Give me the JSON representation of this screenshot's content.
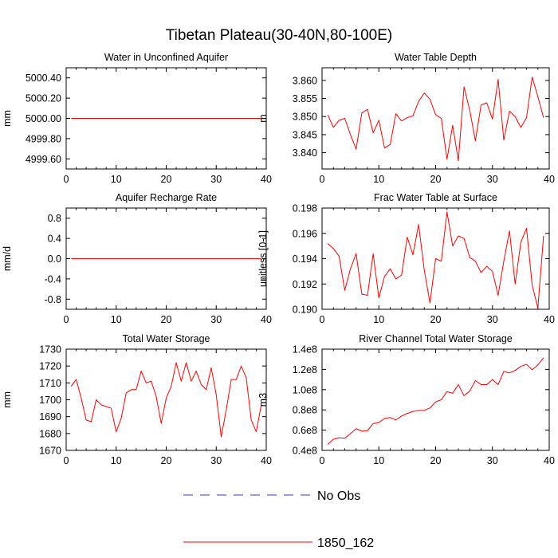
{
  "figure": {
    "title": "Tibetan Plateau(30-40N,80-100E)"
  },
  "legend": {
    "items": [
      {
        "label": "No Obs",
        "color": "#3a3ab0",
        "dash": true
      },
      {
        "label": "1850_162",
        "color": "#ff0000",
        "dash": false
      }
    ]
  },
  "chart_data": [
    {
      "type": "line",
      "title": "Water in Unconfined Aquifer",
      "ylabel": "mm",
      "xlim": [
        0,
        40
      ],
      "ylim": [
        4999.5,
        5000.5
      ],
      "xticks": [
        0,
        10,
        20,
        30,
        40
      ],
      "xtick_labels": [
        "0",
        "10",
        "20",
        "30",
        "40"
      ],
      "yticks": [
        4999.6,
        4999.8,
        5000.0,
        5000.2,
        5000.4
      ],
      "ytick_labels": [
        "4999.60",
        "4999.80",
        "5000.00",
        "5000.20",
        "5000.40"
      ],
      "series": [
        {
          "color": "#ff0000",
          "x": [
            1,
            39
          ],
          "y": [
            5000.0,
            5000.0
          ]
        }
      ]
    },
    {
      "type": "line",
      "title": "Water Table Depth",
      "ylabel": "m",
      "xlim": [
        0,
        40
      ],
      "ylim": [
        3.8355,
        3.8635
      ],
      "xticks": [
        0,
        10,
        20,
        30,
        40
      ],
      "xtick_labels": [
        "0",
        "10",
        "20",
        "30",
        "40"
      ],
      "yticks": [
        3.84,
        3.845,
        3.85,
        3.855,
        3.86
      ],
      "ytick_labels": [
        "3.840",
        "3.845",
        "3.850",
        "3.855",
        "3.860"
      ],
      "series": [
        {
          "color": "#ff0000",
          "x": [
            1,
            2,
            3,
            4,
            5,
            6,
            7,
            8,
            9,
            10,
            11,
            12,
            13,
            14,
            15,
            16,
            17,
            18,
            19,
            20,
            21,
            22,
            23,
            24,
            25,
            26,
            27,
            28,
            29,
            30,
            31,
            32,
            33,
            34,
            35,
            36,
            37,
            38,
            39
          ],
          "y": [
            3.8505,
            3.847,
            3.849,
            3.8495,
            3.845,
            3.841,
            3.851,
            3.852,
            3.8455,
            3.849,
            3.8413,
            3.8423,
            3.8508,
            3.8488,
            3.8497,
            3.8502,
            3.8542,
            3.8565,
            3.8548,
            3.8505,
            3.8495,
            3.8382,
            3.8476,
            3.8378,
            3.8582,
            3.8518,
            3.8433,
            3.8532,
            3.8538,
            3.8493,
            3.8603,
            3.8435,
            3.8515,
            3.85,
            3.847,
            3.8497,
            3.8609,
            3.8555,
            3.8497
          ]
        }
      ]
    },
    {
      "type": "line",
      "title": "Aquifer Recharge Rate",
      "ylabel": "mm/d",
      "xlim": [
        0,
        40
      ],
      "ylim": [
        -1.0,
        1.0
      ],
      "xticks": [
        0,
        10,
        20,
        30,
        40
      ],
      "xtick_labels": [
        "0",
        "10",
        "20",
        "30",
        "40"
      ],
      "yticks": [
        -0.8,
        -0.4,
        0.0,
        0.4,
        0.8
      ],
      "ytick_labels": [
        "-0.8",
        "-0.4",
        "0.0",
        "0.4",
        "0.8"
      ],
      "series": [
        {
          "color": "#ff0000",
          "x": [
            1,
            39
          ],
          "y": [
            0.0,
            0.0
          ]
        }
      ]
    },
    {
      "type": "line",
      "title": "Frac Water Table at Surface",
      "ylabel": "unitless [0-1]",
      "xlim": [
        0,
        40
      ],
      "ylim": [
        0.19,
        0.198
      ],
      "xticks": [
        0,
        10,
        20,
        30,
        40
      ],
      "xtick_labels": [
        "0",
        "10",
        "20",
        "30",
        "40"
      ],
      "yticks": [
        0.19,
        0.192,
        0.194,
        0.196,
        0.198
      ],
      "ytick_labels": [
        "0.190",
        "0.192",
        "0.194",
        "0.196",
        "0.198"
      ],
      "series": [
        {
          "color": "#ff0000",
          "x": [
            1,
            2,
            3,
            4,
            5,
            6,
            7,
            8,
            9,
            10,
            11,
            12,
            13,
            14,
            15,
            16,
            17,
            18,
            19,
            20,
            21,
            22,
            23,
            24,
            25,
            26,
            27,
            28,
            29,
            30,
            31,
            32,
            33,
            34,
            35,
            36,
            37,
            38,
            39
          ],
          "y": [
            0.1952,
            0.1948,
            0.1942,
            0.1915,
            0.1932,
            0.1944,
            0.1912,
            0.1911,
            0.1944,
            0.1909,
            0.1926,
            0.1932,
            0.1924,
            0.1927,
            0.1957,
            0.1943,
            0.1967,
            0.1931,
            0.1905,
            0.194,
            0.1938,
            0.1977,
            0.195,
            0.1958,
            0.1956,
            0.1941,
            0.1938,
            0.1929,
            0.1934,
            0.193,
            0.1911,
            0.1938,
            0.1962,
            0.192,
            0.1953,
            0.1964,
            0.1919,
            0.1901,
            0.1958
          ]
        }
      ]
    },
    {
      "type": "line",
      "title": "Total Water Storage",
      "ylabel": "mm",
      "xlim": [
        0,
        40
      ],
      "ylim": [
        1670,
        1730
      ],
      "xticks": [
        0,
        10,
        20,
        30,
        40
      ],
      "xtick_labels": [
        "0",
        "10",
        "20",
        "30",
        "40"
      ],
      "yticks": [
        1670,
        1680,
        1690,
        1700,
        1710,
        1720,
        1730
      ],
      "ytick_labels": [
        "1670",
        "1680",
        "1690",
        "1700",
        "1710",
        "1720",
        "1730"
      ],
      "series": [
        {
          "color": "#ff0000",
          "x": [
            1,
            2,
            3,
            4,
            5,
            6,
            7,
            8,
            9,
            10,
            11,
            12,
            13,
            14,
            15,
            16,
            17,
            18,
            19,
            20,
            21,
            22,
            23,
            24,
            25,
            26,
            27,
            28,
            29,
            30,
            31,
            32,
            33,
            34,
            35,
            36,
            37,
            38,
            39
          ],
          "y": [
            1708,
            1712,
            1701,
            1688,
            1687,
            1700,
            1697,
            1696,
            1695,
            1681,
            1689,
            1704,
            1706,
            1706,
            1717,
            1710,
            1711,
            1702,
            1686,
            1701,
            1708,
            1722,
            1711,
            1722,
            1711,
            1717,
            1709,
            1706,
            1719,
            1703,
            1678,
            1694,
            1712,
            1712,
            1720,
            1713,
            1688,
            1681,
            1697
          ]
        }
      ]
    },
    {
      "type": "line",
      "title": "River Channel Total Water Storage",
      "ylabel": "m3",
      "xlim": [
        0,
        40
      ],
      "ylim": [
        40000000,
        140000000
      ],
      "xticks": [
        0,
        10,
        20,
        30,
        40
      ],
      "xtick_labels": [
        "0",
        "10",
        "20",
        "30",
        "40"
      ],
      "yticks": [
        40000000,
        60000000,
        80000000,
        100000000,
        120000000,
        140000000
      ],
      "ytick_labels": [
        "0.4e8",
        "0.6e8",
        "0.8e8",
        "1.0e8",
        "1.2e8",
        "1.4e8"
      ],
      "series": [
        {
          "color": "#ff0000",
          "x": [
            1,
            2,
            3,
            4,
            5,
            6,
            7,
            8,
            9,
            10,
            11,
            12,
            13,
            14,
            15,
            16,
            17,
            18,
            19,
            20,
            21,
            22,
            23,
            24,
            25,
            26,
            27,
            28,
            29,
            30,
            31,
            32,
            33,
            34,
            35,
            36,
            37,
            38,
            39
          ],
          "y": [
            46000000,
            51000000,
            52500000,
            52000000,
            56500000,
            61500000,
            59000000,
            59500000,
            66500000,
            67500000,
            71500000,
            72500000,
            70000000,
            74000000,
            76500000,
            78500000,
            79500000,
            79500000,
            82000000,
            88000000,
            90000000,
            98000000,
            96500000,
            105000000,
            94000000,
            98500000,
            109000000,
            105000000,
            105000000,
            110000000,
            105000000,
            118000000,
            116500000,
            119000000,
            123000000,
            125000000,
            119500000,
            124500000,
            131500000
          ]
        }
      ]
    }
  ]
}
